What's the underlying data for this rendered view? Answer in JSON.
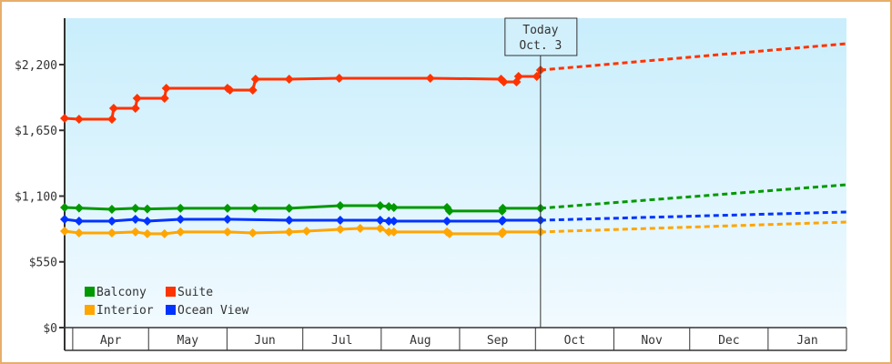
{
  "chart_data": {
    "type": "line",
    "title": "",
    "xlabel": "",
    "ylabel": "",
    "x_unit": "days since Apr 1",
    "xlim": [
      -3.2,
      306
    ],
    "ylim": [
      0,
      2588
    ],
    "y_ticks": [
      {
        "value": 0,
        "label": "$0"
      },
      {
        "value": 550,
        "label": "$550"
      },
      {
        "value": 1100,
        "label": "$1,100"
      },
      {
        "value": 1650,
        "label": "$1,650"
      },
      {
        "value": 2200,
        "label": "$2,200"
      }
    ],
    "months": [
      {
        "label": "Apr",
        "start": 0,
        "end": 30
      },
      {
        "label": "May",
        "start": 30,
        "end": 61
      },
      {
        "label": "Jun",
        "start": 61,
        "end": 91
      },
      {
        "label": "Jul",
        "start": 91,
        "end": 122
      },
      {
        "label": "Aug",
        "start": 122,
        "end": 153
      },
      {
        "label": "Sep",
        "start": 153,
        "end": 183
      },
      {
        "label": "Oct",
        "start": 183,
        "end": 214
      },
      {
        "label": "Nov",
        "start": 214,
        "end": 244
      },
      {
        "label": "Dec",
        "start": 244,
        "end": 275
      },
      {
        "label": "Jan",
        "start": 275,
        "end": 306
      }
    ],
    "today": {
      "x": 185,
      "label_line1": "Today",
      "label_line2": "Oct. 3"
    },
    "legend": {
      "placement": "bottom-left"
    },
    "series": [
      {
        "name": "Balcony",
        "color": "#009900",
        "points": [
          [
            -3.2,
            1005
          ],
          [
            2.5,
            1000
          ],
          [
            15.5,
            990
          ],
          [
            24.8,
            998
          ],
          [
            29.5,
            992
          ],
          [
            42.6,
            998
          ],
          [
            61.2,
            998
          ],
          [
            72,
            998
          ],
          [
            85.6,
            998
          ],
          [
            105.8,
            1020
          ],
          [
            121.6,
            1020
          ],
          [
            125,
            1012
          ],
          [
            127,
            1005
          ],
          [
            148,
            1005
          ],
          [
            149,
            975
          ],
          [
            169.8,
            975
          ],
          [
            170.1,
            998
          ],
          [
            185,
            998
          ]
        ],
        "forecast": [
          [
            185,
            998
          ],
          [
            306,
            1195
          ]
        ]
      },
      {
        "name": "Suite",
        "color": "#ff3300",
        "points": [
          [
            -3.2,
            1751
          ],
          [
            2.5,
            1743
          ],
          [
            15.5,
            1743
          ],
          [
            16.2,
            1834
          ],
          [
            24.8,
            1834
          ],
          [
            25.5,
            1918
          ],
          [
            36.3,
            1918
          ],
          [
            37,
            2002
          ],
          [
            61.2,
            2002
          ],
          [
            62.2,
            1987
          ],
          [
            71.2,
            1987
          ],
          [
            72.3,
            2078
          ],
          [
            85.6,
            2078
          ],
          [
            105.4,
            2086
          ],
          [
            141.4,
            2086
          ],
          [
            169.4,
            2078
          ],
          [
            170.5,
            2055
          ],
          [
            175.5,
            2055
          ],
          [
            176.3,
            2101
          ],
          [
            183.5,
            2101
          ],
          [
            185,
            2154
          ]
        ],
        "forecast": [
          [
            185,
            2154
          ],
          [
            306,
            2375
          ]
        ]
      },
      {
        "name": "Interior",
        "color": "#ffa500",
        "points": [
          [
            -3.2,
            807
          ],
          [
            2.5,
            792
          ],
          [
            15.5,
            792
          ],
          [
            24.8,
            800
          ],
          [
            29.5,
            785
          ],
          [
            36.3,
            785
          ],
          [
            42.6,
            800
          ],
          [
            61.2,
            800
          ],
          [
            71.2,
            792
          ],
          [
            85.6,
            800
          ],
          [
            92.5,
            807
          ],
          [
            105.8,
            822
          ],
          [
            113.7,
            830
          ],
          [
            121.6,
            830
          ],
          [
            125,
            800
          ],
          [
            127,
            800
          ],
          [
            148,
            800
          ],
          [
            149,
            785
          ],
          [
            169.8,
            785
          ],
          [
            170.1,
            800
          ],
          [
            185,
            800
          ]
        ],
        "forecast": [
          [
            185,
            800
          ],
          [
            306,
            883
          ]
        ]
      },
      {
        "name": "Ocean View",
        "color": "#0033ff",
        "points": [
          [
            -3.2,
            906
          ],
          [
            2.5,
            891
          ],
          [
            15.5,
            891
          ],
          [
            24.8,
            906
          ],
          [
            29.5,
            891
          ],
          [
            42.6,
            906
          ],
          [
            61.2,
            906
          ],
          [
            85.6,
            898
          ],
          [
            105.8,
            898
          ],
          [
            121.6,
            898
          ],
          [
            125,
            891
          ],
          [
            127,
            891
          ],
          [
            148,
            891
          ],
          [
            169.8,
            891
          ],
          [
            170.1,
            898
          ],
          [
            185,
            898
          ]
        ],
        "forecast": [
          [
            185,
            898
          ],
          [
            306,
            967
          ]
        ]
      }
    ]
  }
}
